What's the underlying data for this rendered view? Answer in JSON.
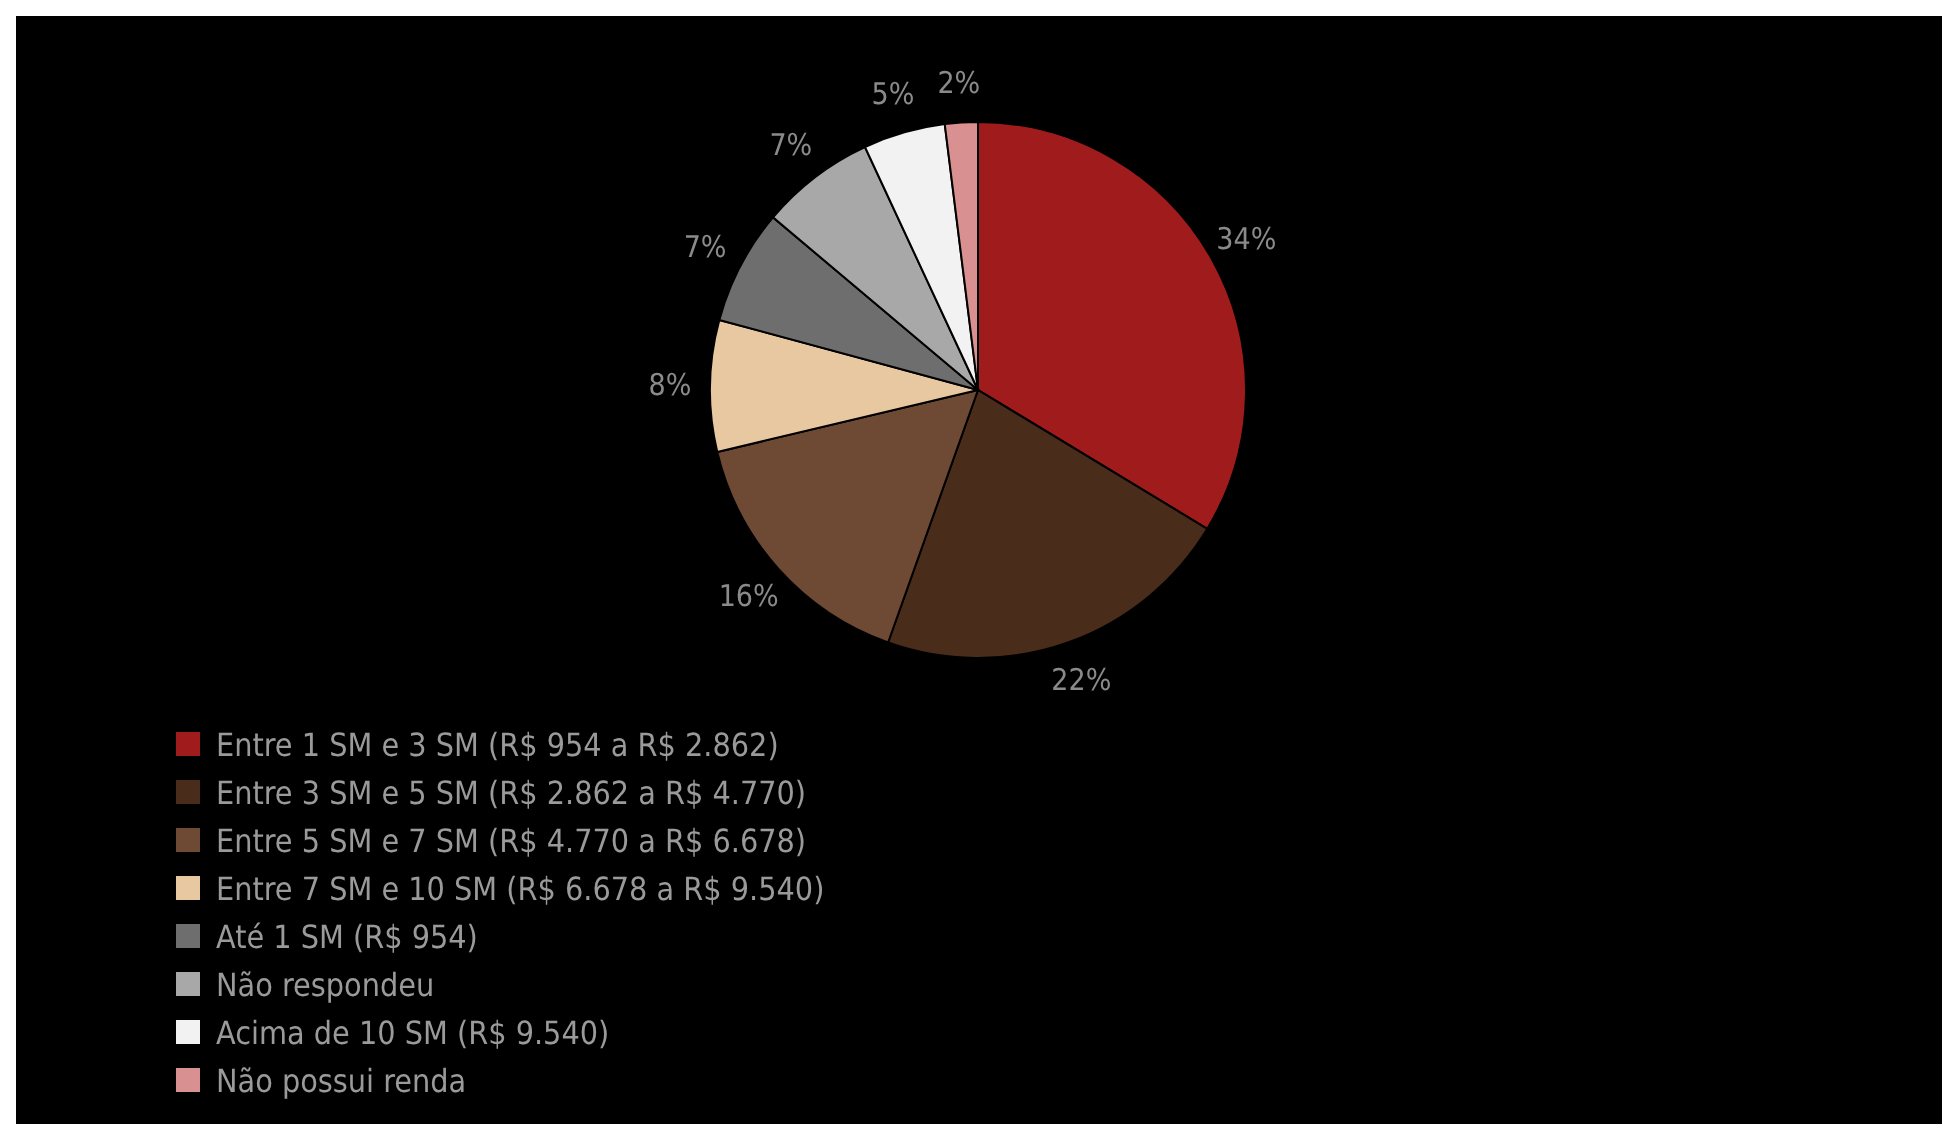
{
  "chart_data": {
    "type": "pie",
    "categories": [
      "Entre 1 SM e 3 SM (R$ 954 a R$ 2.862)",
      "Entre 3 SM e 5 SM (R$ 2.862 a R$ 4.770)",
      "Entre 5 SM e 7 SM (R$ 4.770 a R$ 6.678)",
      "Entre 7 SM e 10 SM (R$ 6.678 a R$ 9.540)",
      "Até 1 SM (R$ 954)",
      "Não respondeu",
      "Acima de 10 SM (R$ 9.540)",
      "Não possui renda"
    ],
    "values": [
      34,
      22,
      16,
      8,
      7,
      7,
      5,
      2
    ],
    "value_labels": [
      "34%",
      "22%",
      "16%",
      "8%",
      "7%",
      "7%",
      "5%",
      "2%"
    ],
    "colors": [
      "#a01c1c",
      "#4a2c1a",
      "#6e4a35",
      "#e8c8a0",
      "#6e6e6e",
      "#a8a8a8",
      "#f2f2f2",
      "#d99090"
    ],
    "legend": "bottom"
  }
}
